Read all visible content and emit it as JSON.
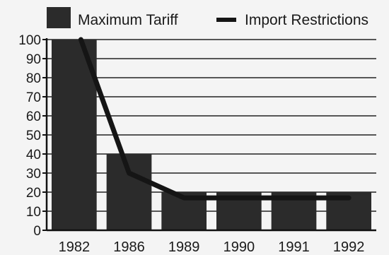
{
  "chart_data": {
    "type": "bar",
    "title": "",
    "xlabel": "",
    "ylabel": "",
    "categories": [
      "1982",
      "1986",
      "1989",
      "1990",
      "1991",
      "1992"
    ],
    "ylim": [
      0,
      100
    ],
    "yticks": [
      0,
      10,
      20,
      30,
      40,
      50,
      60,
      70,
      80,
      90,
      100
    ],
    "grid": "horizontal",
    "legend_placement": "top",
    "series": [
      {
        "name": "Maximum Tariff",
        "kind": "bar",
        "color": "#2b2b2b",
        "values": [
          100,
          40,
          20,
          20,
          20,
          20
        ]
      },
      {
        "name": "Import Restrictions",
        "kind": "line",
        "color": "#151515",
        "values": [
          100,
          30,
          17,
          17,
          17,
          17
        ]
      }
    ]
  }
}
